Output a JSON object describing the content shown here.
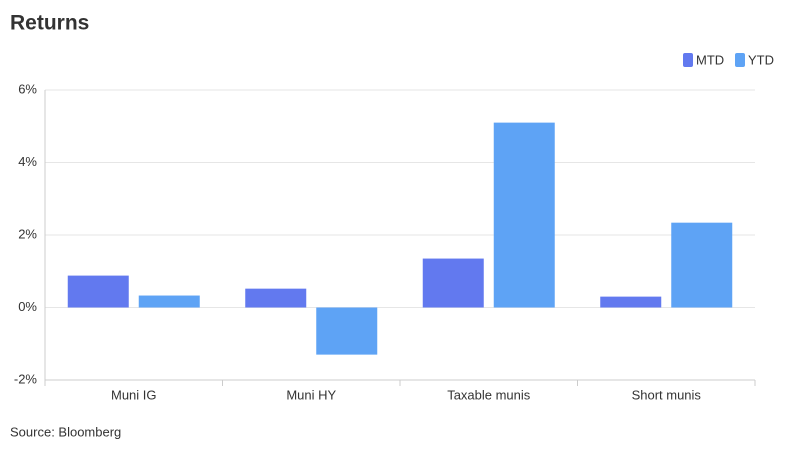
{
  "chart_data": {
    "type": "bar",
    "title": "Returns",
    "source": "Source: Bloomberg",
    "categories": [
      "Muni IG",
      "Muni HY",
      "Taxable munis",
      "Short munis"
    ],
    "series": [
      {
        "name": "MTD",
        "color": "#6279ef",
        "values": [
          0.88,
          0.52,
          1.35,
          0.3
        ]
      },
      {
        "name": "YTD",
        "color": "#5ea3f5",
        "values": [
          0.33,
          -1.3,
          5.1,
          2.34
        ]
      }
    ],
    "ylim": [
      -2,
      6
    ],
    "yticks": [
      {
        "value": -2,
        "label": "-2%"
      },
      {
        "value": 0,
        "label": "0%"
      },
      {
        "value": 2,
        "label": "2%"
      },
      {
        "value": 4,
        "label": "4%"
      },
      {
        "value": 6,
        "label": "6%"
      }
    ],
    "grid": true,
    "legend": "top-right"
  }
}
